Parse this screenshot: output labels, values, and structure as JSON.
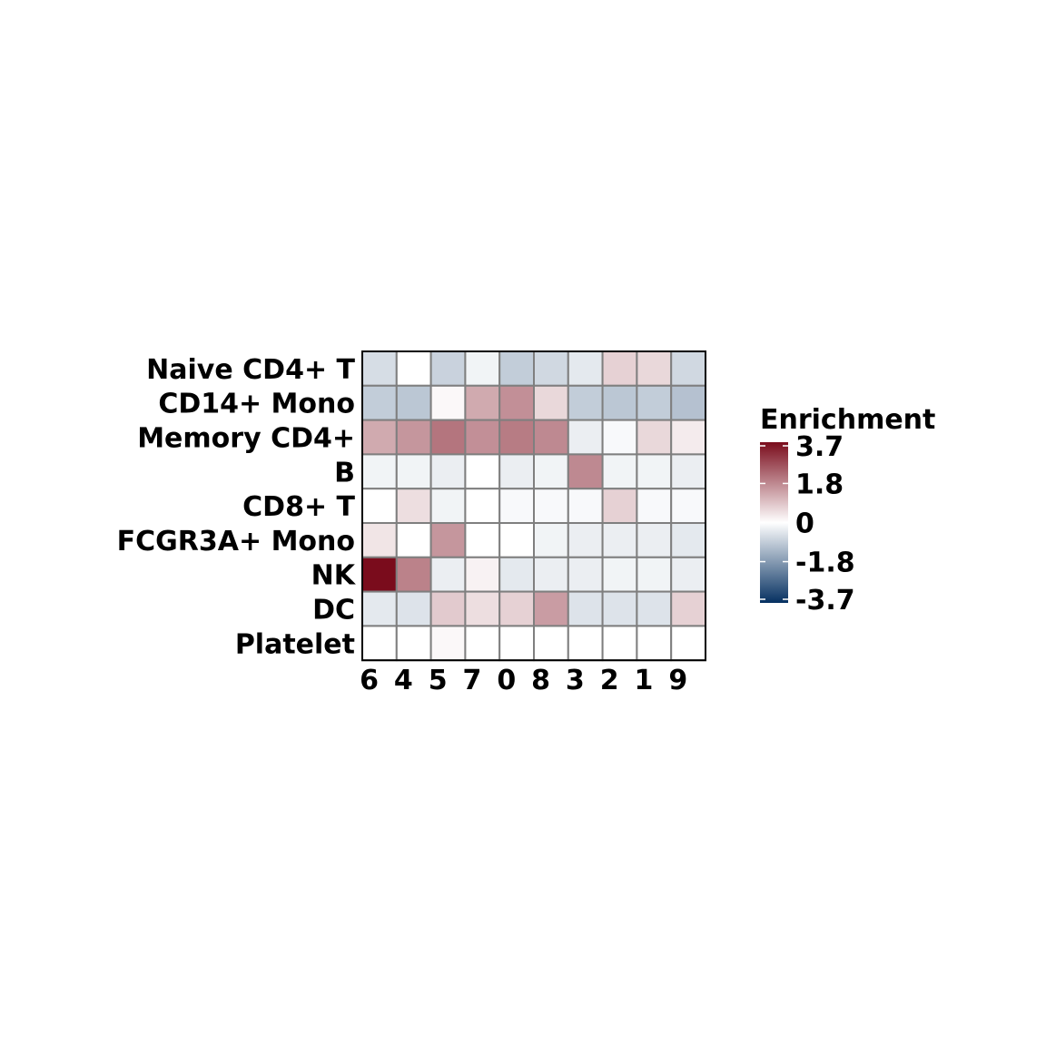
{
  "chart_data": {
    "type": "heatmap",
    "rows": [
      "Naive CD4+ T",
      "CD14+ Mono",
      "Memory CD4+",
      "B",
      "CD8+ T",
      "FCGR3A+ Mono",
      "NK",
      "DC",
      "Platelet"
    ],
    "columns": [
      "6",
      "4",
      "5",
      "7",
      "0",
      "8",
      "3",
      "2",
      "1",
      "9"
    ],
    "values": [
      [
        -0.6,
        0.0,
        -0.8,
        -0.2,
        -0.9,
        -0.7,
        -0.4,
        0.7,
        0.6,
        -0.7
      ],
      [
        -0.9,
        -1.0,
        0.1,
        1.3,
        1.7,
        0.6,
        -0.9,
        -1.0,
        -0.9,
        -1.1
      ],
      [
        1.3,
        1.6,
        2.1,
        1.7,
        2.0,
        1.8,
        -0.3,
        -0.1,
        0.6,
        0.3
      ],
      [
        -0.2,
        -0.2,
        -0.3,
        0.0,
        -0.3,
        -0.2,
        1.8,
        -0.2,
        -0.2,
        -0.3
      ],
      [
        0.0,
        0.5,
        -0.2,
        0.0,
        -0.1,
        -0.1,
        -0.1,
        0.7,
        -0.1,
        -0.1
      ],
      [
        0.4,
        0.0,
        1.6,
        0.0,
        0.0,
        -0.2,
        -0.3,
        -0.3,
        -0.3,
        -0.4
      ],
      [
        3.7,
        1.9,
        -0.3,
        0.2,
        -0.4,
        -0.3,
        -0.3,
        -0.2,
        -0.2,
        -0.3
      ],
      [
        -0.4,
        -0.5,
        0.8,
        0.5,
        0.7,
        1.5,
        -0.5,
        -0.5,
        -0.5,
        0.7
      ],
      [
        0.0,
        0.0,
        0.1,
        0.0,
        0.0,
        0.0,
        0.0,
        0.0,
        0.0,
        0.0
      ]
    ],
    "colorscale": {
      "min": -3.7,
      "max": 3.7,
      "low_color": "#053061",
      "mid_color": "#ffffff",
      "high_color": "#7a0c1c",
      "cell_border_color": "#7f7f7f"
    },
    "legend": {
      "title": "Enrichment",
      "ticks": [
        3.7,
        1.8,
        0,
        -1.8,
        -3.7
      ],
      "tick_labels": [
        "3.7",
        "1.8",
        "0",
        "-1.8",
        "-3.7"
      ],
      "placement": "right"
    }
  }
}
